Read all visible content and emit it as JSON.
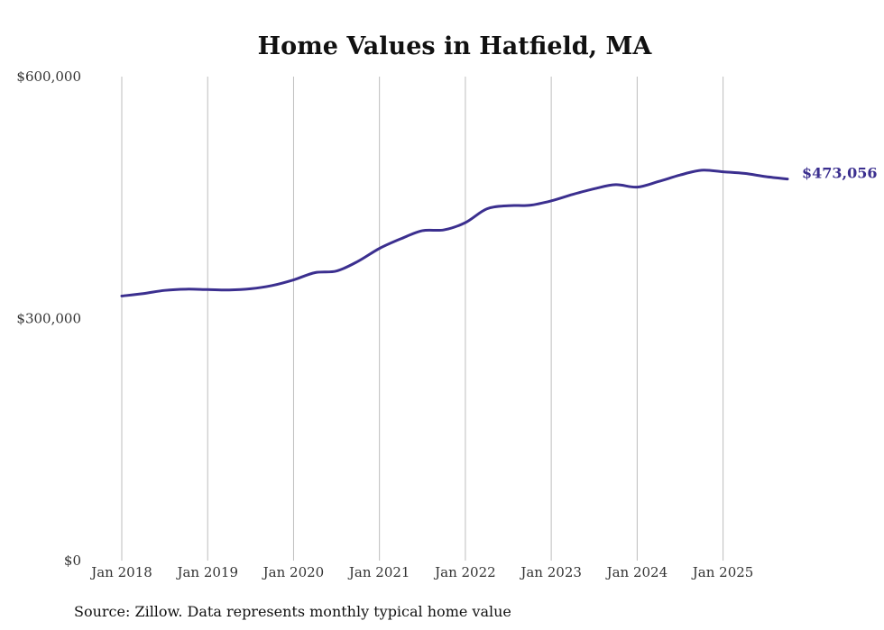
{
  "colors": {
    "line": "#3b2f8f",
    "label": "#3b2f8f"
  },
  "chart_data": {
    "type": "line",
    "title": "Home Values in Hatfield, MA",
    "xlabel": "",
    "ylabel": "",
    "ylim": [
      0,
      600000
    ],
    "xlim": [
      2018.0,
      2025.75
    ],
    "yticks": [
      {
        "value": 0,
        "label": "$0"
      },
      {
        "value": 300000,
        "label": "$300,000"
      },
      {
        "value": 600000,
        "label": "$600,000"
      }
    ],
    "xticks": [
      {
        "value": 2018,
        "label": "Jan 2018"
      },
      {
        "value": 2019,
        "label": "Jan 2019"
      },
      {
        "value": 2020,
        "label": "Jan 2020"
      },
      {
        "value": 2021,
        "label": "Jan 2021"
      },
      {
        "value": 2022,
        "label": "Jan 2022"
      },
      {
        "value": 2023,
        "label": "Jan 2023"
      },
      {
        "value": 2024,
        "label": "Jan 2024"
      },
      {
        "value": 2025,
        "label": "Jan 2025"
      }
    ],
    "series": [
      {
        "name": "Typical home value",
        "x": [
          2018.0,
          2018.25,
          2018.5,
          2018.75,
          2019.0,
          2019.25,
          2019.5,
          2019.75,
          2020.0,
          2020.25,
          2020.5,
          2020.75,
          2021.0,
          2021.25,
          2021.5,
          2021.75,
          2022.0,
          2022.25,
          2022.5,
          2022.75,
          2023.0,
          2023.25,
          2023.5,
          2023.75,
          2024.0,
          2024.25,
          2024.5,
          2024.75,
          2025.0,
          2025.25,
          2025.5,
          2025.75
        ],
        "values": [
          328000,
          331000,
          335000,
          336500,
          336000,
          335500,
          337000,
          341000,
          348000,
          357000,
          359000,
          371000,
          387000,
          399000,
          409000,
          410000,
          419000,
          436000,
          440000,
          440500,
          446000,
          454000,
          461000,
          466000,
          463000,
          470000,
          478000,
          484000,
          482000,
          480000,
          476000,
          473056
        ]
      }
    ],
    "end_label": "$473,056",
    "source": "Source: Zillow. Data represents monthly typical home value"
  }
}
